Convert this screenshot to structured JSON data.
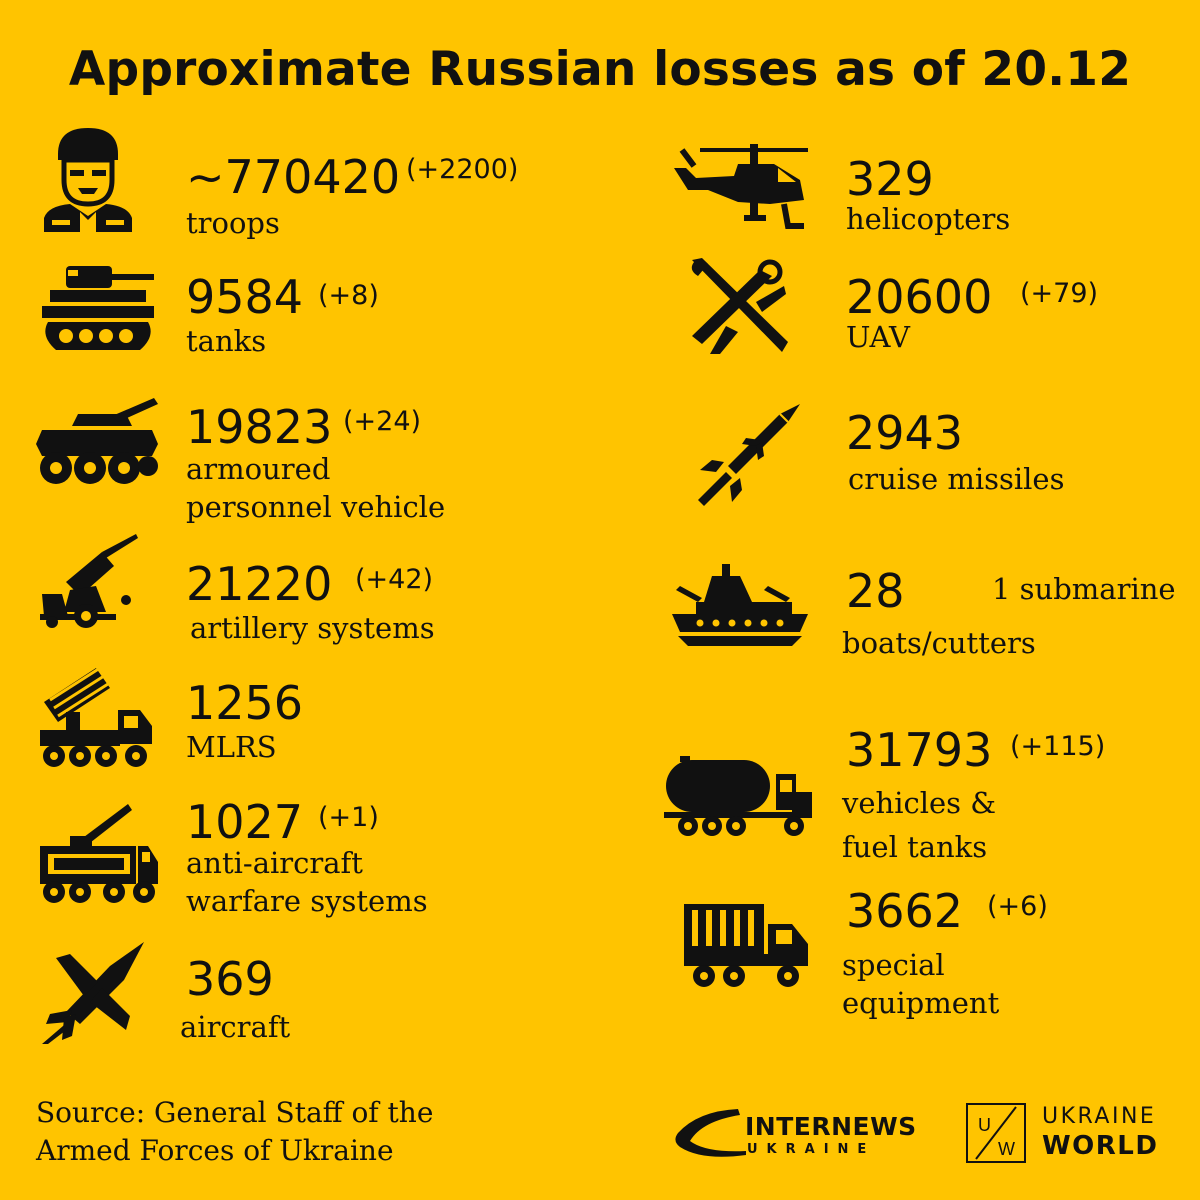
{
  "title": "Approximate Russian losses as of 20.12",
  "colors": {
    "background": "#FFC400",
    "ink": "#111111"
  },
  "left": [
    {
      "icon": "soldier-icon",
      "value": "~770420",
      "delta": "(+2200)",
      "label": [
        "troops"
      ]
    },
    {
      "icon": "tank-icon",
      "value": "9584",
      "delta": "(+8)",
      "label": [
        "tanks"
      ]
    },
    {
      "icon": "apc-icon",
      "value": "19823",
      "delta": "(+24)",
      "label": [
        "armoured",
        "personnel vehicle"
      ]
    },
    {
      "icon": "artillery-icon",
      "value": "21220",
      "delta": "(+42)",
      "label": [
        "artillery systems"
      ]
    },
    {
      "icon": "mlrs-icon",
      "value": "1256",
      "delta": "",
      "label": [
        "MLRS"
      ]
    },
    {
      "icon": "anti-aircraft-icon",
      "value": "1027",
      "delta": "(+1)",
      "label": [
        "anti-aircraft",
        "warfare systems"
      ]
    },
    {
      "icon": "aircraft-icon",
      "value": "369",
      "delta": "",
      "label": [
        "aircraft"
      ]
    }
  ],
  "right": [
    {
      "icon": "helicopter-icon",
      "value": "329",
      "delta": "",
      "label": [
        "helicopters"
      ]
    },
    {
      "icon": "uav-icon",
      "value": "20600",
      "delta": "(+79)",
      "label": [
        "UAV"
      ]
    },
    {
      "icon": "missile-icon",
      "value": "2943",
      "delta": "",
      "label": [
        "cruise missiles"
      ]
    },
    {
      "icon": "ship-icon",
      "value": "28",
      "delta": "",
      "extra": "1 submarine",
      "label": [
        "boats/cutters"
      ]
    },
    {
      "icon": "fuel-truck-icon",
      "value": "31793",
      "delta": "(+115)",
      "label": [
        "vehicles &",
        "fuel tanks"
      ]
    },
    {
      "icon": "special-truck-icon",
      "value": "3662",
      "delta": "(+6)",
      "label": [
        "special",
        "equipment"
      ]
    }
  ],
  "source": [
    "Source: General Staff of the",
    "Armed Forces of Ukraine"
  ],
  "logos": {
    "internews_main": "INTERNEWS",
    "internews_sub": "UKRAINE",
    "uw_letters": [
      "U",
      "W"
    ],
    "uw_main": "UKRAINE",
    "uw_sub": "WORLD"
  }
}
